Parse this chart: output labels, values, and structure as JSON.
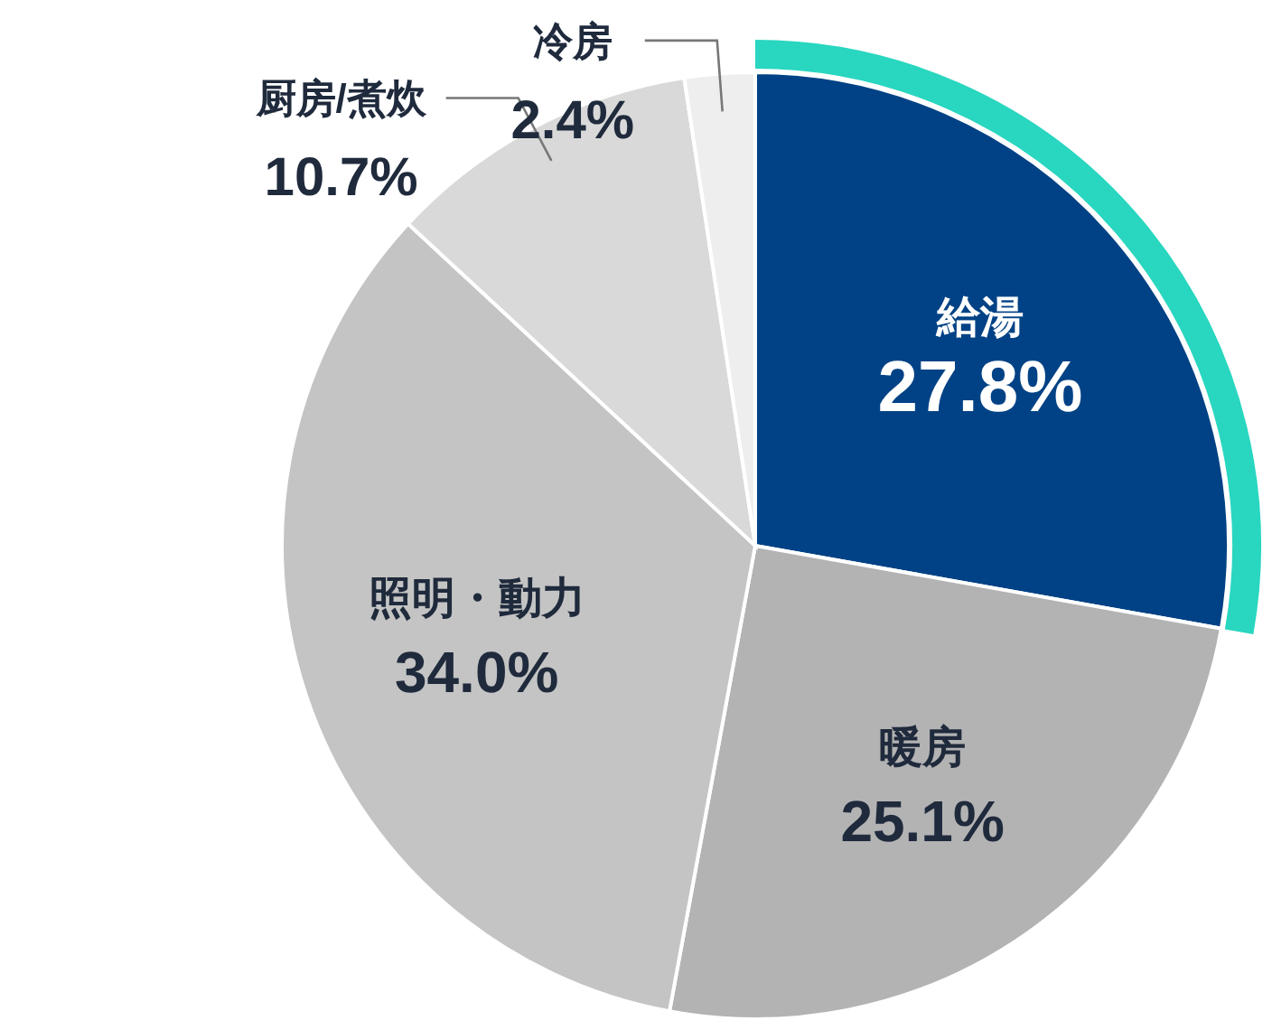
{
  "chart_data": {
    "type": "pie",
    "categories": [
      "給湯",
      "暖房",
      "照明・動力",
      "厨房/煮炊",
      "冷房"
    ],
    "values": [
      27.8,
      25.1,
      34.0,
      10.7,
      2.4
    ],
    "value_labels": [
      "27.8%",
      "25.1%",
      "34.0%",
      "10.7%",
      "2.4%"
    ],
    "colors": [
      "#004285",
      "#b3b3b3",
      "#c4c4c4",
      "#d9d9d9",
      "#eeeeee"
    ],
    "data_labels": true
  }
}
